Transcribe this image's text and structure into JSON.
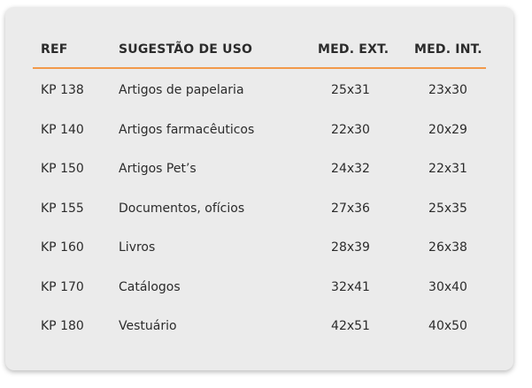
{
  "table": {
    "headers": {
      "ref": "REF",
      "use": "SUGESTÃO DE USO",
      "ext": "MED. EXT.",
      "int": "MED. INT."
    },
    "accent_color": "#f2994a",
    "rows": [
      {
        "ref": "KP 138",
        "use": "Artigos de papelaria",
        "ext": "25x31",
        "int": "23x30"
      },
      {
        "ref": "KP 140",
        "use": "Artigos farmacêuticos",
        "ext": "22x30",
        "int": "20x29"
      },
      {
        "ref": "KP 150",
        "use": "Artigos Pet’s",
        "ext": "24x32",
        "int": "22x31"
      },
      {
        "ref": "KP 155",
        "use": "Documentos, ofícios",
        "ext": "27x36",
        "int": "25x35"
      },
      {
        "ref": "KP 160",
        "use": "Livros",
        "ext": "28x39",
        "int": "26x38"
      },
      {
        "ref": "KP 170",
        "use": "Catálogos",
        "ext": "32x41",
        "int": "30x40"
      },
      {
        "ref": "KP 180",
        "use": "Vestuário",
        "ext": "42x51",
        "int": "40x50"
      }
    ]
  }
}
